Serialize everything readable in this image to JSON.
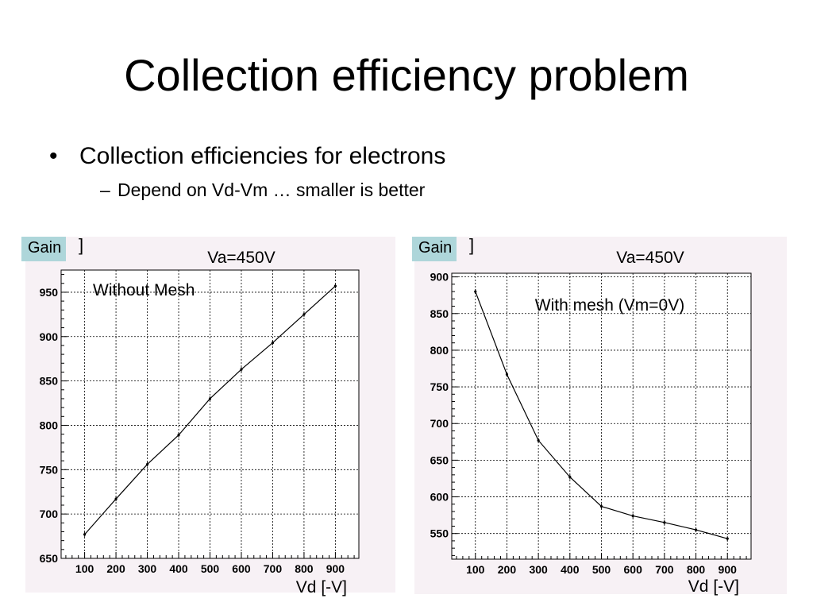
{
  "slide": {
    "title": "Collection efficiency problem",
    "bullets": [
      {
        "text": "Collection efficiencies for electrons"
      },
      {
        "text": "Depend on Vd-Vm … smaller is better"
      }
    ]
  },
  "chart_data": [
    {
      "type": "line",
      "ylabel": "Gain",
      "xlabel": "Vd [-V]",
      "annotation": "Va=450V",
      "label": "Without Mesh",
      "x": [
        100,
        200,
        300,
        400,
        500,
        600,
        700,
        800,
        900
      ],
      "y": [
        677,
        717,
        756,
        789,
        830,
        863,
        893,
        925,
        957
      ],
      "xlim": [
        25,
        975
      ],
      "ylim": [
        650,
        975
      ],
      "xticks": [
        "100",
        "200",
        "300",
        "400",
        "500",
        "600",
        "700",
        "800",
        "900"
      ],
      "yticks": [
        "650",
        "700",
        "750",
        "800",
        "850",
        "900",
        "950"
      ],
      "grid": true,
      "line_color": "#000000"
    },
    {
      "type": "line",
      "ylabel": "Gain",
      "xlabel": "Vd [-V]",
      "annotation": "Va=450V",
      "label": "With mesh (Vm=0V)",
      "x": [
        100,
        200,
        300,
        400,
        500,
        600,
        700,
        800,
        900
      ],
      "y": [
        880,
        767,
        677,
        627,
        587,
        574,
        565,
        555,
        543
      ],
      "xlim": [
        25,
        975
      ],
      "ylim": [
        515,
        905
      ],
      "xticks": [
        "100",
        "200",
        "300",
        "400",
        "500",
        "600",
        "700",
        "800",
        "900"
      ],
      "yticks": [
        "550",
        "600",
        "650",
        "700",
        "750",
        "800",
        "850",
        "900"
      ],
      "grid": true,
      "line_color": "#000000"
    }
  ]
}
